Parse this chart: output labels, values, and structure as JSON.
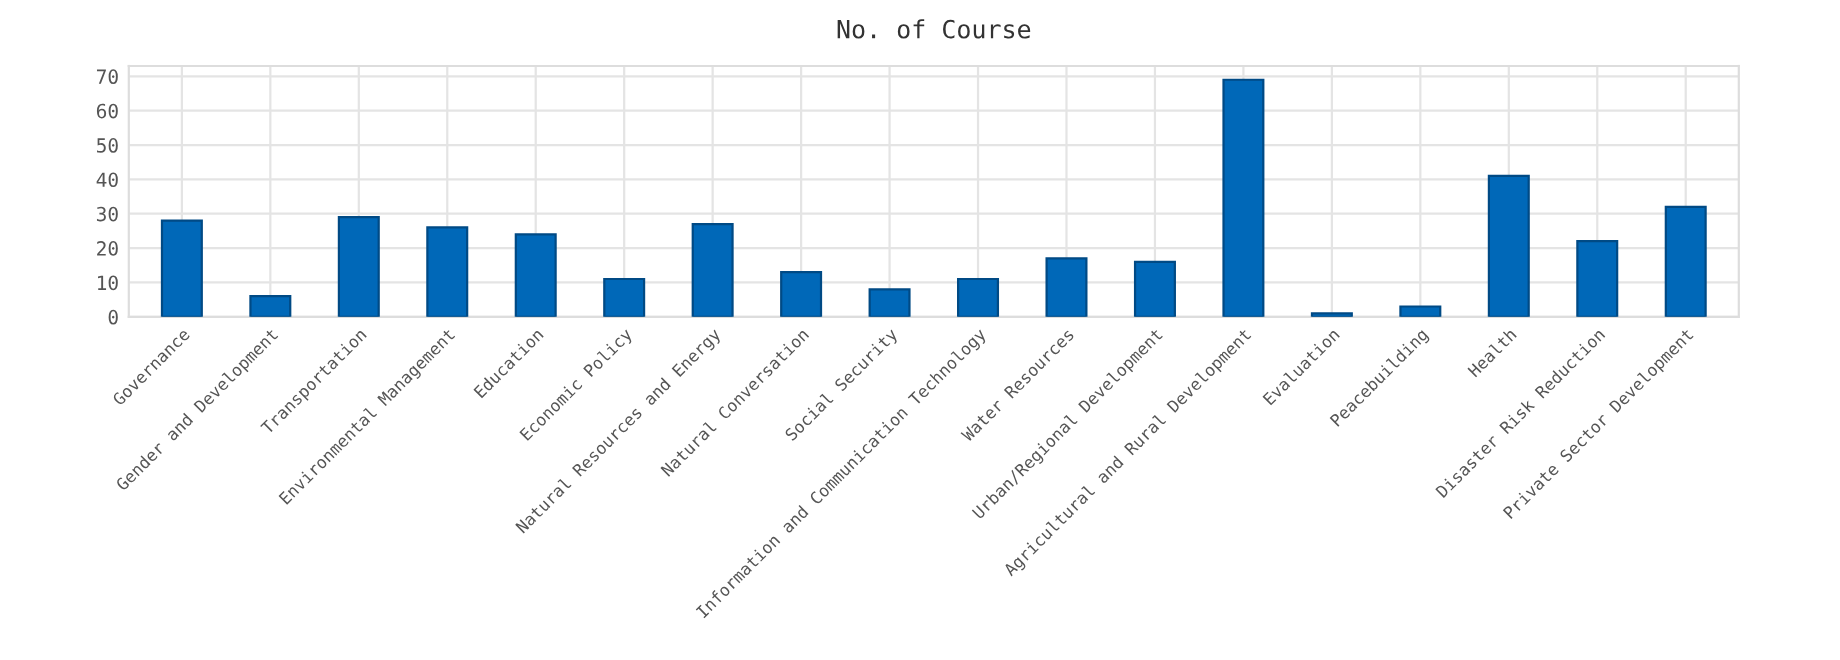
{
  "chart_data": {
    "type": "bar",
    "title": "No. of Course",
    "categories": [
      "Governance",
      "Gender and Development",
      "Transportation",
      "Environmental Management",
      "Education",
      "Economic Policy",
      "Natural Resources and Energy",
      "Natural Conversation",
      "Social Security",
      "Information and Communication Technology",
      "Water Resources",
      "Urban/Regional Development",
      "Agricultural and Rural Development",
      "Evaluation",
      "Peacebuilding",
      "Health",
      "Disaster Risk Reduction",
      "Private Sector Development"
    ],
    "values": [
      28,
      6,
      29,
      26,
      24,
      11,
      27,
      13,
      8,
      11,
      17,
      16,
      69,
      1,
      3,
      41,
      22,
      32
    ],
    "color": "#0068b8",
    "ylim": [
      0,
      73
    ],
    "yticks": [
      0,
      10,
      20,
      30,
      40,
      50,
      60,
      70
    ],
    "grid": true
  }
}
